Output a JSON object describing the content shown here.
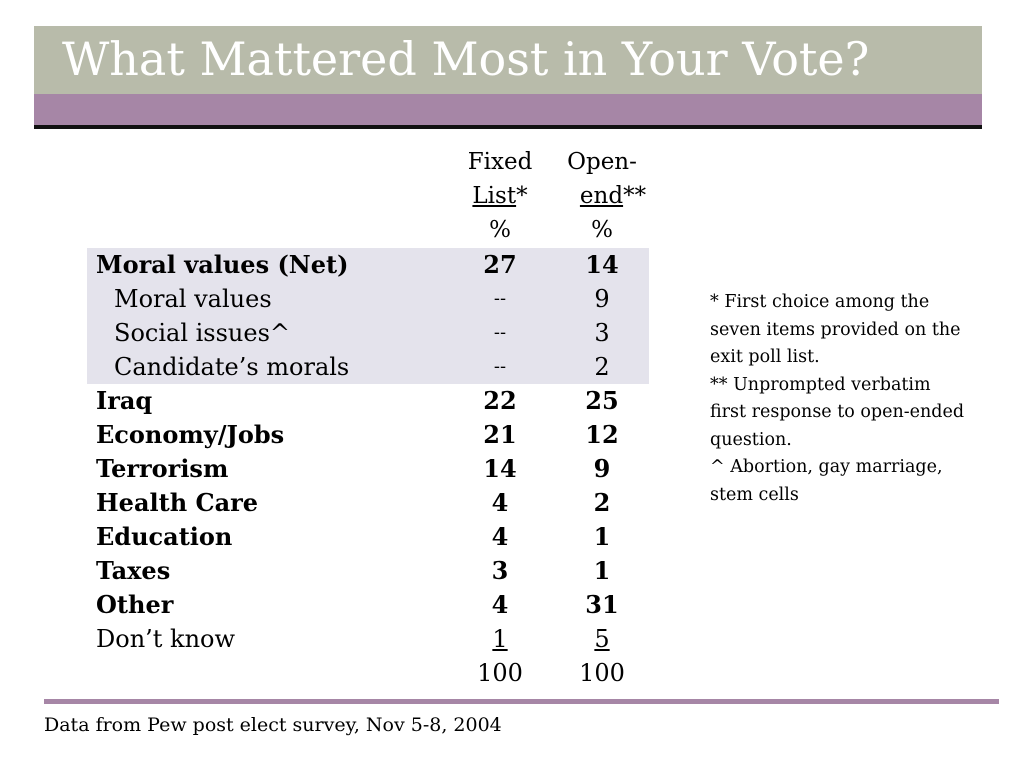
{
  "title": "What Mattered Most in Your Vote?",
  "columns": [
    {
      "line1": "Fixed",
      "line2_under": "List",
      "line2_rest": "*",
      "line3": "%"
    },
    {
      "line1": "Open-",
      "line2_under": "end",
      "line2_rest": "**",
      "line3": "%"
    }
  ],
  "rows": [
    {
      "label": "Moral values (Net)",
      "fixed": "27",
      "open": "14"
    },
    {
      "label": "Moral values",
      "fixed": "--",
      "open": "9"
    },
    {
      "label": "Social issues^",
      "fixed": "--",
      "open": "3"
    },
    {
      "label": "Candidate’s morals",
      "fixed": "--",
      "open": "2"
    },
    {
      "label": "Iraq",
      "fixed": "22",
      "open": "25"
    },
    {
      "label": "Economy/Jobs",
      "fixed": "21",
      "open": "12"
    },
    {
      "label": "Terrorism",
      "fixed": "14",
      "open": "9"
    },
    {
      "label": "Health Care",
      "fixed": "4",
      "open": "2"
    },
    {
      "label": "Education",
      "fixed": "4",
      "open": "1"
    },
    {
      "label": "Taxes",
      "fixed": "3",
      "open": "1"
    },
    {
      "label": "Other",
      "fixed": "4",
      "open": "31"
    },
    {
      "label": "Don’t know",
      "fixed": "1",
      "open": "5"
    }
  ],
  "totals": {
    "fixed": "100",
    "open": "100"
  },
  "notes": [
    "*   First choice among the",
    "seven items provided on the",
    "exit poll list.",
    "** Unprompted verbatim",
    "first response to open-ended",
    "question.",
    "^   Abortion, gay marriage,",
    "stem cells"
  ],
  "source": "Data from Pew post elect survey, Nov 5-8, 2004",
  "colors": {
    "title_band": "#b8bbaa",
    "accent_purple": "#a686a6",
    "shaded_rows": "#e4e3ec"
  }
}
